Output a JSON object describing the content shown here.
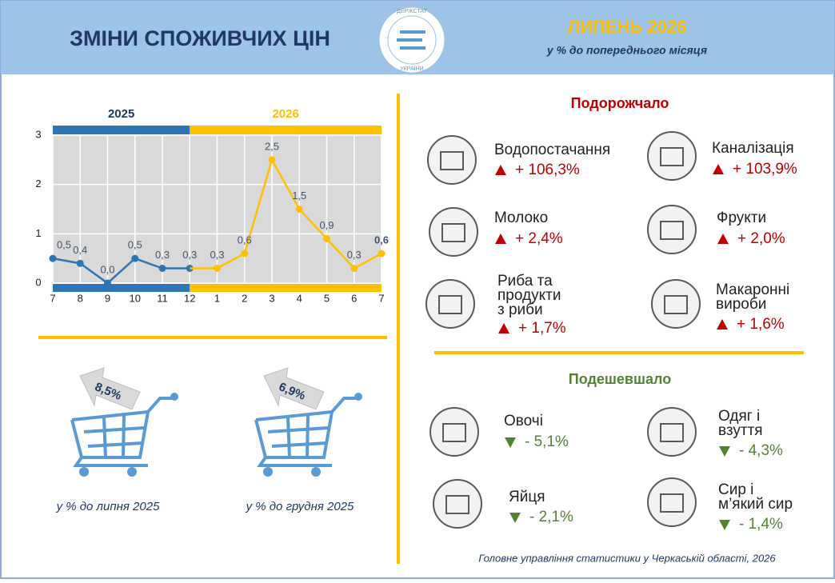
{
  "header": {
    "title": "ЗМІНИ СПОЖИВЧИХ ЦІН",
    "logo_top": "ДЕРЖСТАТ",
    "logo_bottom": "УКРАЇНИ",
    "month": "ЛИПЕНЬ 2026",
    "subtitle": "у % до попереднього місяця"
  },
  "chart_data": {
    "type": "line",
    "categories": [
      "7",
      "8",
      "9",
      "10",
      "11",
      "12",
      "1",
      "2",
      "3",
      "4",
      "5",
      "6",
      "7"
    ],
    "series": [
      {
        "name": "2025",
        "color": "#2e75b6",
        "values": [
          0.5,
          0.4,
          0.0,
          0.5,
          0.3,
          0.3,
          null,
          null,
          null,
          null,
          null,
          null,
          null
        ],
        "value_labels": [
          "0,5",
          "0,4",
          "0,0",
          "0,5",
          "0,3",
          "0,3",
          null,
          null,
          null,
          null,
          null,
          null,
          null
        ]
      },
      {
        "name": "2026",
        "color": "#ffc000",
        "values": [
          null,
          null,
          null,
          null,
          null,
          null,
          0.3,
          0.6,
          2.5,
          1.5,
          0.9,
          0.3,
          0.6
        ],
        "value_labels": [
          null,
          null,
          null,
          null,
          null,
          null,
          "0,3",
          "0,6",
          "2,5",
          "1,5",
          "0,9",
          "0,3",
          "0,6"
        ]
      }
    ],
    "ylim": [
      0,
      3
    ],
    "yticks": [
      0,
      1,
      2,
      3
    ],
    "grid": true
  },
  "carts": [
    {
      "value": "8,5%",
      "caption": "у % до липня 2025"
    },
    {
      "value": "6,9%",
      "caption": "у % до грудня 2025"
    }
  ],
  "rising": {
    "title": "Подорожчало",
    "items": [
      {
        "name": [
          "Водопостачання"
        ],
        "value": "+ 106,3%"
      },
      {
        "name": [
          "Каналізація"
        ],
        "value": "+ 103,9%"
      },
      {
        "name": [
          "Молоко"
        ],
        "value": "+ 2,4%"
      },
      {
        "name": [
          "Фрукти"
        ],
        "value": "+ 2,0%"
      },
      {
        "name": [
          "Риба та",
          "продукти",
          "з риби"
        ],
        "value": "+ 1,7%"
      },
      {
        "name": [
          "Макаронні",
          "вироби"
        ],
        "value": "+ 1,6%"
      }
    ]
  },
  "falling": {
    "title": "Подешевшало",
    "items": [
      {
        "name": [
          "Овочі"
        ],
        "value": "- 5,1%"
      },
      {
        "name": [
          "Одяг і",
          "взуття"
        ],
        "value": "- 4,3%"
      },
      {
        "name": [
          "Яйця"
        ],
        "value": "- 2,1%"
      },
      {
        "name": [
          "Сир і",
          "м’який сир"
        ],
        "value": "- 1,4%"
      }
    ]
  },
  "footer": "Головне управління статистики у Черкаській області, 2026"
}
